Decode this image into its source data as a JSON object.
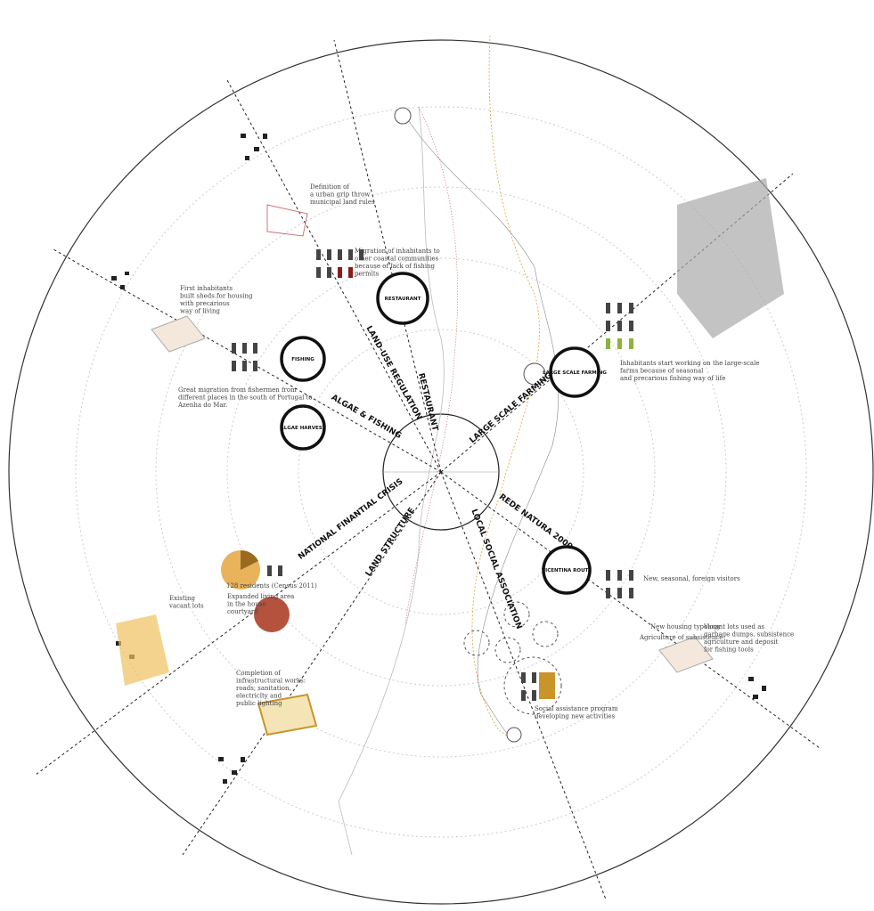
{
  "radial_labels": [
    "LAND-USE REGULATION",
    "RESTAURANT",
    "ALGAE & FISHING",
    "LARGE SCALE FARMING",
    "REDE NATURA 2000",
    "LOCAL SOCIAL ASSOCIATION",
    "LAND STRUCTURE",
    "NATIONAL FINANTIAL CRISIS"
  ],
  "nodes": [
    "RESTAURANT",
    "FISHING",
    "ALGAE HARVEST",
    "LARGE SCALE FARMING",
    "VICENTINA ROUTE"
  ],
  "annotations": [
    [
      "Definition of",
      "a urban grip throw",
      "municipal land rules"
    ],
    [
      "Migration of inhabitants to",
      "other coastal communities",
      "because of lack of fishing",
      "permits"
    ],
    [
      "First inhabitants",
      "built sheds for housing",
      "with precarious",
      "way of living"
    ],
    [
      "Great migration from fishermen from",
      "different places in the south of Portugal to",
      "Azenha do Mar."
    ],
    [
      "Inhabitants start working on the large-scale",
      "farms because of seasonal",
      "and precarious fishing way of life"
    ],
    [
      "New, seasonal, foreign visitors"
    ],
    [
      "128 residents (Census 2011)"
    ],
    [
      "Existing",
      "vacant lots"
    ],
    [
      "Expanded living area",
      "in the house",
      "courtyard"
    ],
    [
      "Completion of",
      "infrastructural works:",
      "roads, sanitation,",
      "electricity and",
      "public lighting"
    ],
    [
      "Social assistance program",
      "developing new activities"
    ],
    [
      "New housing typology"
    ],
    [
      "Agriculture of subsistence"
    ],
    [
      "Vacant lots used as",
      "garbage dumps, subsistence",
      "agriculture and deposit",
      "for fishing tools"
    ]
  ]
}
